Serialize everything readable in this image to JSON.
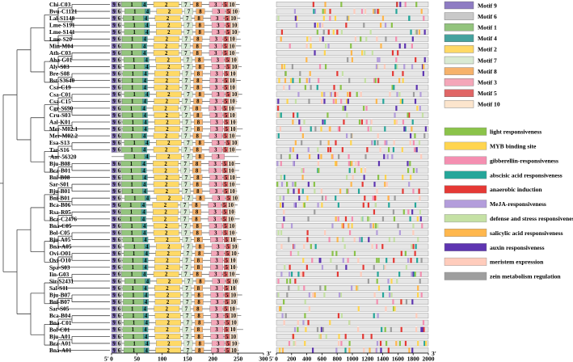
{
  "genes": [
    "Chi-C03",
    "Bvu-C1121",
    "Lal-S1148",
    "Lme-S191",
    "Lme-S141",
    "Lme-S20",
    "Min-M04",
    "Ath-C03",
    "Aha-G01",
    "Aly-S03",
    "Bre-S08",
    "Bst-S3640",
    "Csa-C19",
    "Csa-C01",
    "Csa-C15",
    "Cgr-S690",
    "Cru-S03",
    "Aal-K01",
    "Mer-M02.1",
    "Mer-M02.2",
    "Esa-S13",
    "Tar-S16",
    "Aar-56320",
    "Bju-B08",
    "Bca-B01",
    "Bni-B08",
    "Sar-S01",
    "Bju-B01",
    "Bni-B01",
    "Bca-B06",
    "Rsa-R05",
    "Bca-C2476",
    "Bna-C05",
    "Bol-C05",
    "Bju-A05",
    "Bna-A05",
    "Ovi-O01",
    "Ovi-O10",
    "Spa-S03",
    "Iin-G03",
    "Sir-S2431",
    "Sal-S11",
    "Bju-B07",
    "Bni-B07",
    "Sar-S05",
    "Bca-B04",
    "Bna-C01",
    "Bol-C01",
    "Bju-A01",
    "Bra-A01",
    "Bna-A01"
  ],
  "motif_legend": [
    {
      "name": "Motif 9",
      "color": "#8e7cc3"
    },
    {
      "name": "Motif 6",
      "color": "#c9c9c9"
    },
    {
      "name": "Motif 1",
      "color": "#93c47d"
    },
    {
      "name": "Motif 4",
      "color": "#45a29e"
    },
    {
      "name": "Motif 2",
      "color": "#ffd966"
    },
    {
      "name": "Motif 7",
      "color": "#d9ead3"
    },
    {
      "name": "Motif 8",
      "color": "#f6b26b"
    },
    {
      "name": "Motif 3",
      "color": "#f4a7b9"
    },
    {
      "name": "Motif 5",
      "color": "#e06666"
    },
    {
      "name": "Motif 10",
      "color": "#fce5cd"
    }
  ],
  "element_legend": [
    {
      "name": "light responsiveness",
      "color": "#8bc34a"
    },
    {
      "name": "MYB binding site",
      "color": "#ffd54f"
    },
    {
      "name": "gibberellin-responsiveness",
      "color": "#f48fb1"
    },
    {
      "name": "abscisic acid responsiveness",
      "color": "#26a69a"
    },
    {
      "name": "anaerobic induction",
      "color": "#e53935"
    },
    {
      "name": "MeJA-responsiveness",
      "color": "#b39ddb"
    },
    {
      "name": "defense and stress responsiveness",
      "color": "#c5e1a5"
    },
    {
      "name": "salicylic acid responsiveness",
      "color": "#ffb74d"
    },
    {
      "name": "auxin responsiveness",
      "color": "#5e35b1"
    },
    {
      "name": "meristem expression",
      "color": "#ffccbc"
    },
    {
      "name": "zein metabolism regulation",
      "color": "#9e9e9e"
    }
  ],
  "motif_axis": {
    "ticks": [
      0,
      50,
      100,
      150,
      200,
      250,
      300
    ],
    "start": "5'",
    "end": "3'"
  },
  "promoter_axis": {
    "ticks": [
      0,
      200,
      400,
      600,
      800,
      1000,
      1200,
      1400,
      1600,
      1800,
      2000
    ],
    "start": "5'",
    "end": "3'"
  },
  "motif_labels": [
    "9",
    "6",
    "1",
    "4",
    "2",
    "7",
    "8",
    "3",
    "5",
    "10"
  ]
}
